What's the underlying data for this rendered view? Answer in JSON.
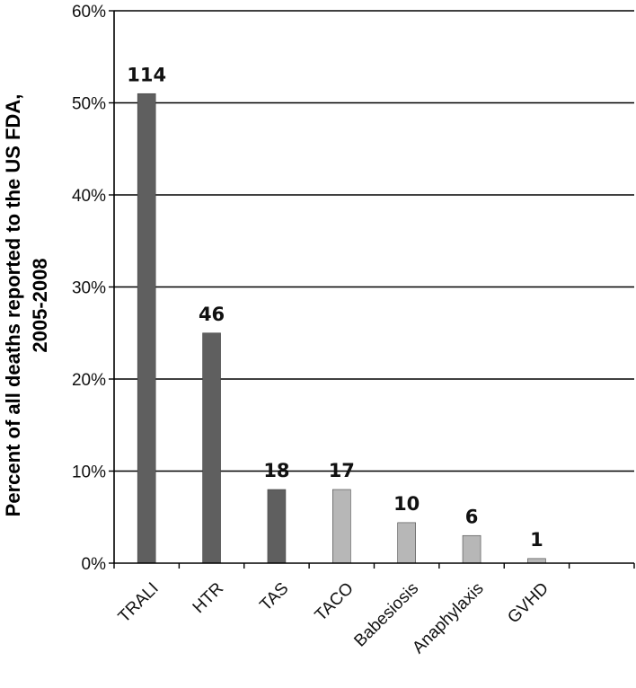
{
  "chart_data": {
    "type": "bar",
    "categories": [
      "TRALI",
      "HTR",
      "TAS",
      "TACO",
      "Babesiosis",
      "Anaphylaxis",
      "GVHD"
    ],
    "values": [
      51,
      25,
      8,
      8,
      4.4,
      3,
      0.5
    ],
    "data_labels": [
      "114",
      "46",
      "18",
      "17",
      "10",
      "6",
      "1"
    ],
    "colors": [
      "#5f5f5f",
      "#5f5f5f",
      "#5f5f5f",
      "#b7b7b7",
      "#b7b7b7",
      "#b7b7b7",
      "#b7b7b7"
    ],
    "ylabel_lines": [
      "Percent of all deaths reported to the US FDA,",
      "2005-2008"
    ],
    "xlabel": "",
    "ylim": [
      0,
      60
    ],
    "yticks": [
      0,
      10,
      20,
      30,
      40,
      50,
      60
    ],
    "ytick_labels": [
      "0%",
      "10%",
      "20%",
      "30%",
      "40%",
      "50%",
      "60%"
    ],
    "grid": true,
    "legend": "none"
  }
}
